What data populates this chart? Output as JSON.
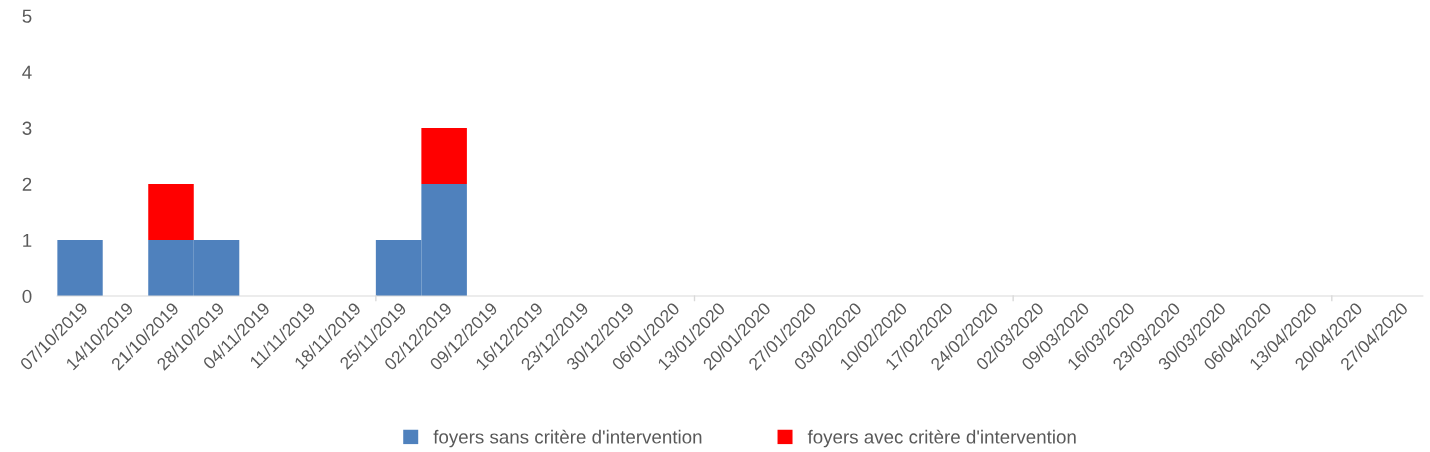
{
  "chart_data": {
    "type": "bar",
    "stacked": true,
    "categories": [
      "07/10/2019",
      "14/10/2019",
      "21/10/2019",
      "28/10/2019",
      "04/11/2019",
      "11/11/2019",
      "18/11/2019",
      "25/11/2019",
      "02/12/2019",
      "09/12/2019",
      "16/12/2019",
      "23/12/2019",
      "30/12/2019",
      "06/01/2020",
      "13/01/2020",
      "20/01/2020",
      "27/01/2020",
      "03/02/2020",
      "10/02/2020",
      "17/02/2020",
      "24/02/2020",
      "02/03/2020",
      "09/03/2020",
      "16/03/2020",
      "23/03/2020",
      "30/03/2020",
      "06/04/2020",
      "13/04/2020",
      "20/04/2020",
      "27/04/2020"
    ],
    "series": [
      {
        "name": "foyers sans critère d'intervention",
        "color": "#4f81bd",
        "values": [
          1,
          0,
          1,
          1,
          0,
          0,
          0,
          1,
          2,
          0,
          0,
          0,
          0,
          0,
          0,
          0,
          0,
          0,
          0,
          0,
          0,
          0,
          0,
          0,
          0,
          0,
          0,
          0,
          0,
          0
        ]
      },
      {
        "name": "foyers avec critère d'intervention",
        "color": "#ff0000",
        "values": [
          0,
          0,
          1,
          0,
          0,
          0,
          0,
          0,
          1,
          0,
          0,
          0,
          0,
          0,
          0,
          0,
          0,
          0,
          0,
          0,
          0,
          0,
          0,
          0,
          0,
          0,
          0,
          0,
          0,
          0
        ]
      }
    ],
    "ylim": [
      0,
      5
    ],
    "yticks": [
      0,
      1,
      2,
      3,
      4,
      5
    ],
    "grid": false,
    "legend": "bottom"
  }
}
